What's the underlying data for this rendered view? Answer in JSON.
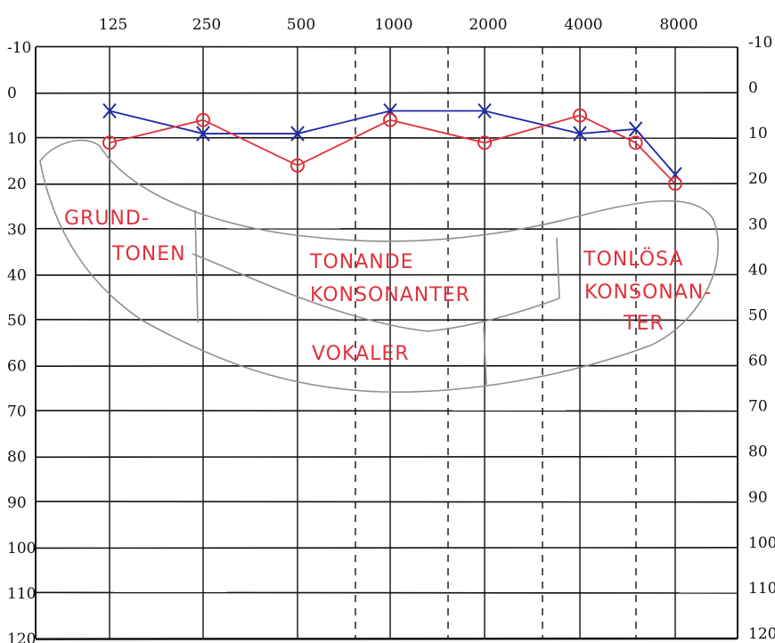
{
  "chart_data": {
    "type": "line",
    "x_tick_labels": [
      "125",
      "250",
      "500",
      "1000",
      "2000",
      "4000",
      "8000"
    ],
    "x_intermediate": [
      1500,
      3000,
      6000
    ],
    "y_tick_labels": [
      "-10",
      "0",
      "10",
      "20",
      "30",
      "40",
      "50",
      "60",
      "70",
      "80",
      "90",
      "100",
      "110",
      "120"
    ],
    "ylim": [
      -10,
      120
    ],
    "y_inverted": true,
    "x_scale": "log",
    "grid": true,
    "series": [
      {
        "marker": "x",
        "color": "#1f2aa8",
        "points": [
          {
            "x": 125,
            "y": 4
          },
          {
            "x": 250,
            "y": 9
          },
          {
            "x": 500,
            "y": 9
          },
          {
            "x": 1000,
            "y": 4
          },
          {
            "x": 2000,
            "y": 4
          },
          {
            "x": 4000,
            "y": 9
          },
          {
            "x": 6000,
            "y": 8
          },
          {
            "x": 8000,
            "y": 18
          }
        ]
      },
      {
        "marker": "o",
        "color": "#e0313b",
        "points": [
          {
            "x": 125,
            "y": 11
          },
          {
            "x": 250,
            "y": 6
          },
          {
            "x": 500,
            "y": 16
          },
          {
            "x": 1000,
            "y": 6
          },
          {
            "x": 2000,
            "y": 11
          },
          {
            "x": 4000,
            "y": 5
          },
          {
            "x": 6000,
            "y": 11
          },
          {
            "x": 8000,
            "y": 20
          }
        ]
      }
    ],
    "annotations": [
      {
        "text": "GRUND-"
      },
      {
        "text": "TONEN"
      },
      {
        "text": "TONANDE"
      },
      {
        "text": "KONSONANTER"
      },
      {
        "text": "VOKALER"
      },
      {
        "text": "TONLÖSA"
      },
      {
        "text": "KONSONAN-"
      },
      {
        "text": "TER"
      }
    ]
  }
}
